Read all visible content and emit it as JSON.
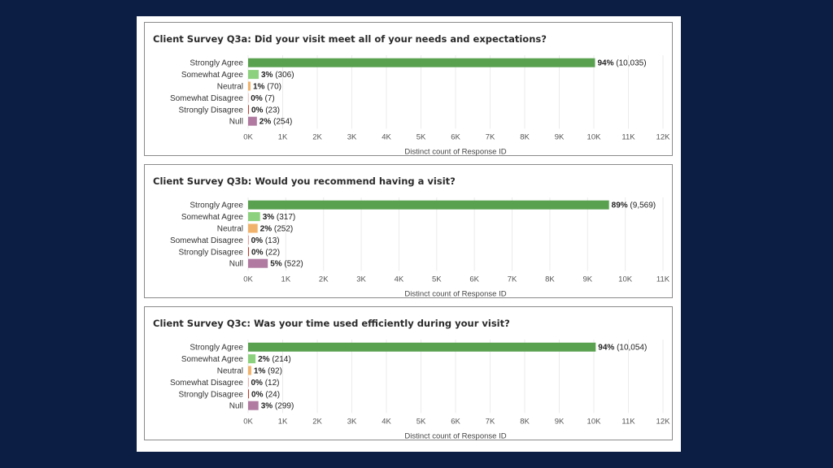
{
  "colors": {
    "background": "#0d1e45",
    "strongly_agree": "#59a14f",
    "somewhat_agree": "#8cd17d",
    "neutral": "#f1b36b",
    "somewhat_disagree": "#e15759",
    "strongly_disagree": "#c0392b",
    "null": "#b07aa1"
  },
  "chart_data": [
    {
      "type": "bar",
      "orientation": "horizontal",
      "title": "Client Survey Q3a: Did your visit meet all of your needs and expectations?",
      "xlabel": "Distinct count of Response ID",
      "categories": [
        "Strongly Agree",
        "Somewhat Agree",
        "Neutral",
        "Somewhat Disagree",
        "Strongly Disagree",
        "Null"
      ],
      "values": [
        10035,
        306,
        70,
        7,
        23,
        254
      ],
      "value_labels": [
        "(10,035)",
        "(306)",
        "(70)",
        "(7)",
        "(23)",
        "(254)"
      ],
      "percent_labels": [
        "94%",
        "3%",
        "1%",
        "0%",
        "0%",
        "2%"
      ],
      "xlim": [
        0,
        12000
      ],
      "ticks": [
        0,
        1000,
        2000,
        3000,
        4000,
        5000,
        6000,
        7000,
        8000,
        9000,
        10000,
        11000,
        12000
      ],
      "tick_labels": [
        "0K",
        "1K",
        "2K",
        "3K",
        "4K",
        "5K",
        "6K",
        "7K",
        "8K",
        "9K",
        "10K",
        "11K",
        "12K"
      ]
    },
    {
      "type": "bar",
      "orientation": "horizontal",
      "title": "Client Survey Q3b: Would you recommend having a visit?",
      "xlabel": "Distinct count of Response ID",
      "categories": [
        "Strongly Agree",
        "Somewhat Agree",
        "Neutral",
        "Somewhat Disagree",
        "Strongly Disagree",
        "Null"
      ],
      "values": [
        9569,
        317,
        252,
        13,
        22,
        522
      ],
      "value_labels": [
        "(9,569)",
        "(317)",
        "(252)",
        "(13)",
        "(22)",
        "(522)"
      ],
      "percent_labels": [
        "89%",
        "3%",
        "2%",
        "0%",
        "0%",
        "5%"
      ],
      "xlim": [
        0,
        11000
      ],
      "ticks": [
        0,
        1000,
        2000,
        3000,
        4000,
        5000,
        6000,
        7000,
        8000,
        9000,
        10000,
        11000
      ],
      "tick_labels": [
        "0K",
        "1K",
        "2K",
        "3K",
        "4K",
        "5K",
        "6K",
        "7K",
        "8K",
        "9K",
        "10K",
        "11K"
      ]
    },
    {
      "type": "bar",
      "orientation": "horizontal",
      "title": "Client Survey Q3c: Was your time used efficiently during your visit?",
      "xlabel": "Distinct count of Response ID",
      "categories": [
        "Strongly Agree",
        "Somewhat Agree",
        "Neutral",
        "Somewhat Disagree",
        "Strongly Disagree",
        "Null"
      ],
      "values": [
        10054,
        214,
        92,
        12,
        24,
        299
      ],
      "value_labels": [
        "(10,054)",
        "(214)",
        "(92)",
        "(12)",
        "(24)",
        "(299)"
      ],
      "percent_labels": [
        "94%",
        "2%",
        "1%",
        "0%",
        "0%",
        "3%"
      ],
      "xlim": [
        0,
        12000
      ],
      "ticks": [
        0,
        1000,
        2000,
        3000,
        4000,
        5000,
        6000,
        7000,
        8000,
        9000,
        10000,
        11000,
        12000
      ],
      "tick_labels": [
        "0K",
        "1K",
        "2K",
        "3K",
        "4K",
        "5K",
        "6K",
        "7K",
        "8K",
        "9K",
        "10K",
        "11K",
        "12K"
      ]
    }
  ]
}
